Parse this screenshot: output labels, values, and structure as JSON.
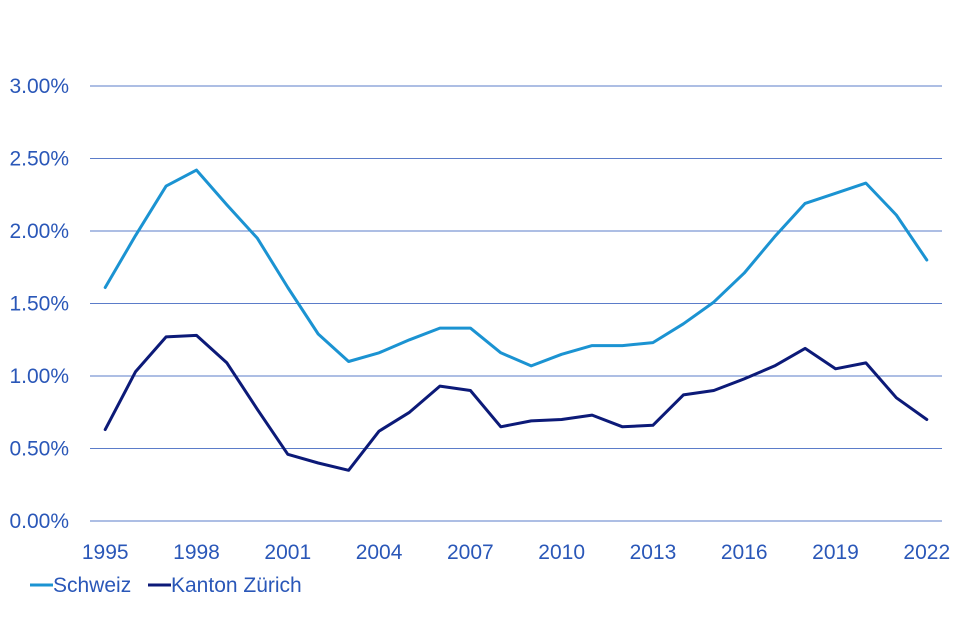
{
  "chart_data": {
    "type": "line",
    "title": "",
    "xlabel": "",
    "ylabel": "",
    "x": [
      1995,
      1996,
      1997,
      1998,
      1999,
      2000,
      2001,
      2002,
      2003,
      2004,
      2005,
      2006,
      2007,
      2008,
      2009,
      2010,
      2011,
      2012,
      2013,
      2014,
      2015,
      2016,
      2017,
      2018,
      2019,
      2020,
      2021,
      2022
    ],
    "x_ticks": [
      1995,
      1998,
      2001,
      2004,
      2007,
      2010,
      2013,
      2016,
      2019,
      2022
    ],
    "x_tick_labels": [
      "1995",
      "1998",
      "2001",
      "2004",
      "2007",
      "2010",
      "2013",
      "2016",
      "2019",
      "2022"
    ],
    "y_ticks": [
      0,
      0.5,
      1.0,
      1.5,
      2.0,
      2.5,
      3.0
    ],
    "y_tick_labels": [
      "0.00%",
      "0.50%",
      "1.00%",
      "1.50%",
      "2.00%",
      "2.50%",
      "3.00%"
    ],
    "ylim": [
      0,
      3.0
    ],
    "grid": "horizontal",
    "legend_position": "bottom-left",
    "series": [
      {
        "name": "Schweiz",
        "color": "#1b93d2",
        "values": [
          1.61,
          1.97,
          2.31,
          2.42,
          2.18,
          1.95,
          1.61,
          1.29,
          1.1,
          1.16,
          1.25,
          1.33,
          1.33,
          1.16,
          1.07,
          1.15,
          1.21,
          1.21,
          1.23,
          1.36,
          1.51,
          1.71,
          1.96,
          2.19,
          2.26,
          2.33,
          2.11,
          1.8
        ]
      },
      {
        "name": "Kanton Zürich",
        "color": "#0c1a78",
        "values": [
          0.63,
          1.03,
          1.27,
          1.28,
          1.09,
          0.77,
          0.46,
          0.4,
          0.35,
          0.62,
          0.75,
          0.93,
          0.9,
          0.65,
          0.69,
          0.7,
          0.73,
          0.65,
          0.66,
          0.87,
          0.9,
          0.98,
          1.07,
          1.19,
          1.05,
          1.09,
          0.85,
          0.7
        ]
      }
    ]
  }
}
